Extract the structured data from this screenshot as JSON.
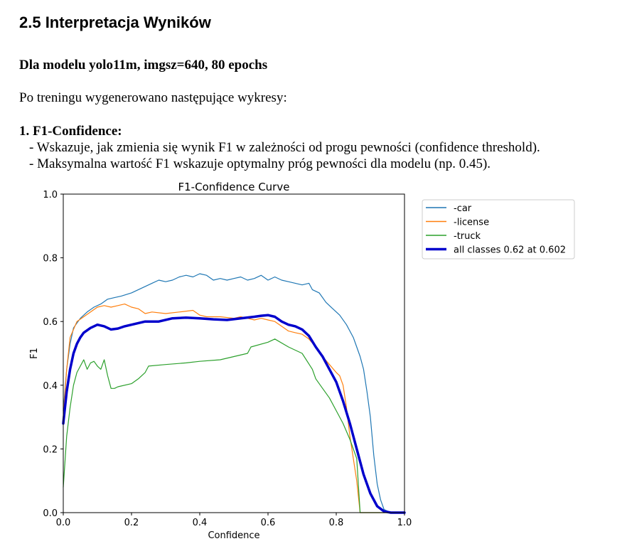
{
  "document": {
    "heading": "2.5 Interpretacja Wyników",
    "model_line": "Dla modelu yolo11m, imgsz=640, 80 epochs",
    "intro": "Po treningu wygenerowano następujące wykresy:",
    "item_title": "1. F1-Confidence:",
    "bullets": [
      "- Wskazuje, jak zmienia się wynik F1 w zależności od progu pewności (confidence threshold).",
      "- Maksymalna wartość F1 wskazuje optymalny próg pewności dla modelu (np. 0.45)."
    ]
  },
  "chart_data": {
    "type": "line",
    "title": "F1-Confidence Curve",
    "xlabel": "Confidence",
    "ylabel": "F1",
    "xlim": [
      0,
      1
    ],
    "ylim": [
      0,
      1
    ],
    "xticks": [
      "0.0",
      "0.2",
      "0.4",
      "0.6",
      "0.8",
      "1.0"
    ],
    "yticks": [
      "0.0",
      "0.2",
      "0.4",
      "0.6",
      "0.8",
      "1.0"
    ],
    "grid": false,
    "legend": "outside-top-right",
    "series": [
      {
        "name": "-car",
        "color": "#1f77b4",
        "width": 1.2,
        "points": [
          [
            0,
            0.32
          ],
          [
            0.01,
            0.45
          ],
          [
            0.02,
            0.53
          ],
          [
            0.03,
            0.58
          ],
          [
            0.05,
            0.61
          ],
          [
            0.07,
            0.63
          ],
          [
            0.09,
            0.645
          ],
          [
            0.11,
            0.655
          ],
          [
            0.13,
            0.67
          ],
          [
            0.15,
            0.675
          ],
          [
            0.17,
            0.68
          ],
          [
            0.2,
            0.69
          ],
          [
            0.22,
            0.7
          ],
          [
            0.24,
            0.71
          ],
          [
            0.26,
            0.72
          ],
          [
            0.28,
            0.73
          ],
          [
            0.3,
            0.725
          ],
          [
            0.32,
            0.73
          ],
          [
            0.34,
            0.74
          ],
          [
            0.36,
            0.745
          ],
          [
            0.38,
            0.74
          ],
          [
            0.4,
            0.75
          ],
          [
            0.42,
            0.745
          ],
          [
            0.44,
            0.73
          ],
          [
            0.46,
            0.735
          ],
          [
            0.48,
            0.73
          ],
          [
            0.5,
            0.735
          ],
          [
            0.52,
            0.74
          ],
          [
            0.54,
            0.73
          ],
          [
            0.56,
            0.735
          ],
          [
            0.58,
            0.745
          ],
          [
            0.6,
            0.73
          ],
          [
            0.62,
            0.74
          ],
          [
            0.64,
            0.73
          ],
          [
            0.66,
            0.725
          ],
          [
            0.68,
            0.72
          ],
          [
            0.7,
            0.715
          ],
          [
            0.72,
            0.72
          ],
          [
            0.73,
            0.7
          ],
          [
            0.75,
            0.69
          ],
          [
            0.77,
            0.66
          ],
          [
            0.79,
            0.64
          ],
          [
            0.81,
            0.62
          ],
          [
            0.83,
            0.59
          ],
          [
            0.85,
            0.55
          ],
          [
            0.86,
            0.52
          ],
          [
            0.87,
            0.49
          ],
          [
            0.88,
            0.45
          ],
          [
            0.89,
            0.38
          ],
          [
            0.9,
            0.3
          ],
          [
            0.91,
            0.18
          ],
          [
            0.92,
            0.09
          ],
          [
            0.93,
            0.04
          ],
          [
            0.94,
            0.01
          ],
          [
            0.96,
            0
          ],
          [
            1,
            0
          ]
        ]
      },
      {
        "name": "-license",
        "color": "#ff7f0e",
        "width": 1.2,
        "points": [
          [
            0,
            0.3
          ],
          [
            0.01,
            0.45
          ],
          [
            0.02,
            0.55
          ],
          [
            0.04,
            0.6
          ],
          [
            0.06,
            0.615
          ],
          [
            0.08,
            0.63
          ],
          [
            0.1,
            0.645
          ],
          [
            0.12,
            0.65
          ],
          [
            0.14,
            0.645
          ],
          [
            0.16,
            0.65
          ],
          [
            0.18,
            0.655
          ],
          [
            0.2,
            0.645
          ],
          [
            0.22,
            0.64
          ],
          [
            0.24,
            0.625
          ],
          [
            0.26,
            0.63
          ],
          [
            0.3,
            0.625
          ],
          [
            0.34,
            0.63
          ],
          [
            0.38,
            0.635
          ],
          [
            0.4,
            0.62
          ],
          [
            0.42,
            0.615
          ],
          [
            0.46,
            0.615
          ],
          [
            0.5,
            0.61
          ],
          [
            0.52,
            0.615
          ],
          [
            0.54,
            0.61
          ],
          [
            0.56,
            0.605
          ],
          [
            0.58,
            0.61
          ],
          [
            0.6,
            0.605
          ],
          [
            0.62,
            0.6
          ],
          [
            0.64,
            0.585
          ],
          [
            0.66,
            0.57
          ],
          [
            0.68,
            0.565
          ],
          [
            0.7,
            0.56
          ],
          [
            0.72,
            0.545
          ],
          [
            0.74,
            0.52
          ],
          [
            0.76,
            0.49
          ],
          [
            0.78,
            0.465
          ],
          [
            0.8,
            0.44
          ],
          [
            0.81,
            0.43
          ],
          [
            0.82,
            0.4
          ],
          [
            0.83,
            0.33
          ],
          [
            0.84,
            0.24
          ],
          [
            0.85,
            0.17
          ],
          [
            0.86,
            0.1
          ],
          [
            0.87,
            0
          ],
          [
            1,
            0
          ]
        ]
      },
      {
        "name": "-truck",
        "color": "#2ca02c",
        "width": 1.2,
        "points": [
          [
            0,
            0.08
          ],
          [
            0.01,
            0.24
          ],
          [
            0.02,
            0.33
          ],
          [
            0.03,
            0.4
          ],
          [
            0.04,
            0.44
          ],
          [
            0.05,
            0.46
          ],
          [
            0.06,
            0.48
          ],
          [
            0.07,
            0.45
          ],
          [
            0.08,
            0.47
          ],
          [
            0.09,
            0.475
          ],
          [
            0.1,
            0.46
          ],
          [
            0.11,
            0.45
          ],
          [
            0.12,
            0.48
          ],
          [
            0.13,
            0.43
          ],
          [
            0.14,
            0.39
          ],
          [
            0.15,
            0.39
          ],
          [
            0.16,
            0.395
          ],
          [
            0.2,
            0.405
          ],
          [
            0.22,
            0.42
          ],
          [
            0.24,
            0.44
          ],
          [
            0.25,
            0.46
          ],
          [
            0.3,
            0.465
          ],
          [
            0.36,
            0.47
          ],
          [
            0.4,
            0.475
          ],
          [
            0.46,
            0.48
          ],
          [
            0.5,
            0.49
          ],
          [
            0.54,
            0.5
          ],
          [
            0.55,
            0.52
          ],
          [
            0.6,
            0.535
          ],
          [
            0.62,
            0.545
          ],
          [
            0.66,
            0.52
          ],
          [
            0.7,
            0.5
          ],
          [
            0.73,
            0.45
          ],
          [
            0.74,
            0.42
          ],
          [
            0.76,
            0.39
          ],
          [
            0.78,
            0.36
          ],
          [
            0.8,
            0.32
          ],
          [
            0.82,
            0.28
          ],
          [
            0.84,
            0.23
          ],
          [
            0.86,
            0.17
          ],
          [
            0.87,
            0
          ],
          [
            1,
            0
          ]
        ]
      },
      {
        "name": "all classes 0.62 at 0.602",
        "color": "#0000cc",
        "width": 3.5,
        "points": [
          [
            0,
            0.28
          ],
          [
            0.01,
            0.38
          ],
          [
            0.02,
            0.45
          ],
          [
            0.03,
            0.5
          ],
          [
            0.04,
            0.53
          ],
          [
            0.05,
            0.55
          ],
          [
            0.06,
            0.565
          ],
          [
            0.08,
            0.58
          ],
          [
            0.1,
            0.59
          ],
          [
            0.12,
            0.585
          ],
          [
            0.14,
            0.575
          ],
          [
            0.16,
            0.578
          ],
          [
            0.18,
            0.585
          ],
          [
            0.2,
            0.59
          ],
          [
            0.22,
            0.595
          ],
          [
            0.24,
            0.6
          ],
          [
            0.28,
            0.6
          ],
          [
            0.32,
            0.61
          ],
          [
            0.36,
            0.612
          ],
          [
            0.4,
            0.61
          ],
          [
            0.44,
            0.607
          ],
          [
            0.48,
            0.605
          ],
          [
            0.52,
            0.61
          ],
          [
            0.56,
            0.615
          ],
          [
            0.58,
            0.618
          ],
          [
            0.6,
            0.62
          ],
          [
            0.62,
            0.615
          ],
          [
            0.64,
            0.6
          ],
          [
            0.66,
            0.59
          ],
          [
            0.68,
            0.585
          ],
          [
            0.7,
            0.575
          ],
          [
            0.72,
            0.555
          ],
          [
            0.74,
            0.52
          ],
          [
            0.76,
            0.49
          ],
          [
            0.78,
            0.45
          ],
          [
            0.8,
            0.41
          ],
          [
            0.82,
            0.35
          ],
          [
            0.84,
            0.28
          ],
          [
            0.86,
            0.2
          ],
          [
            0.88,
            0.12
          ],
          [
            0.9,
            0.06
          ],
          [
            0.92,
            0.02
          ],
          [
            0.94,
            0.004
          ],
          [
            0.96,
            0
          ],
          [
            1,
            0
          ]
        ]
      }
    ]
  }
}
